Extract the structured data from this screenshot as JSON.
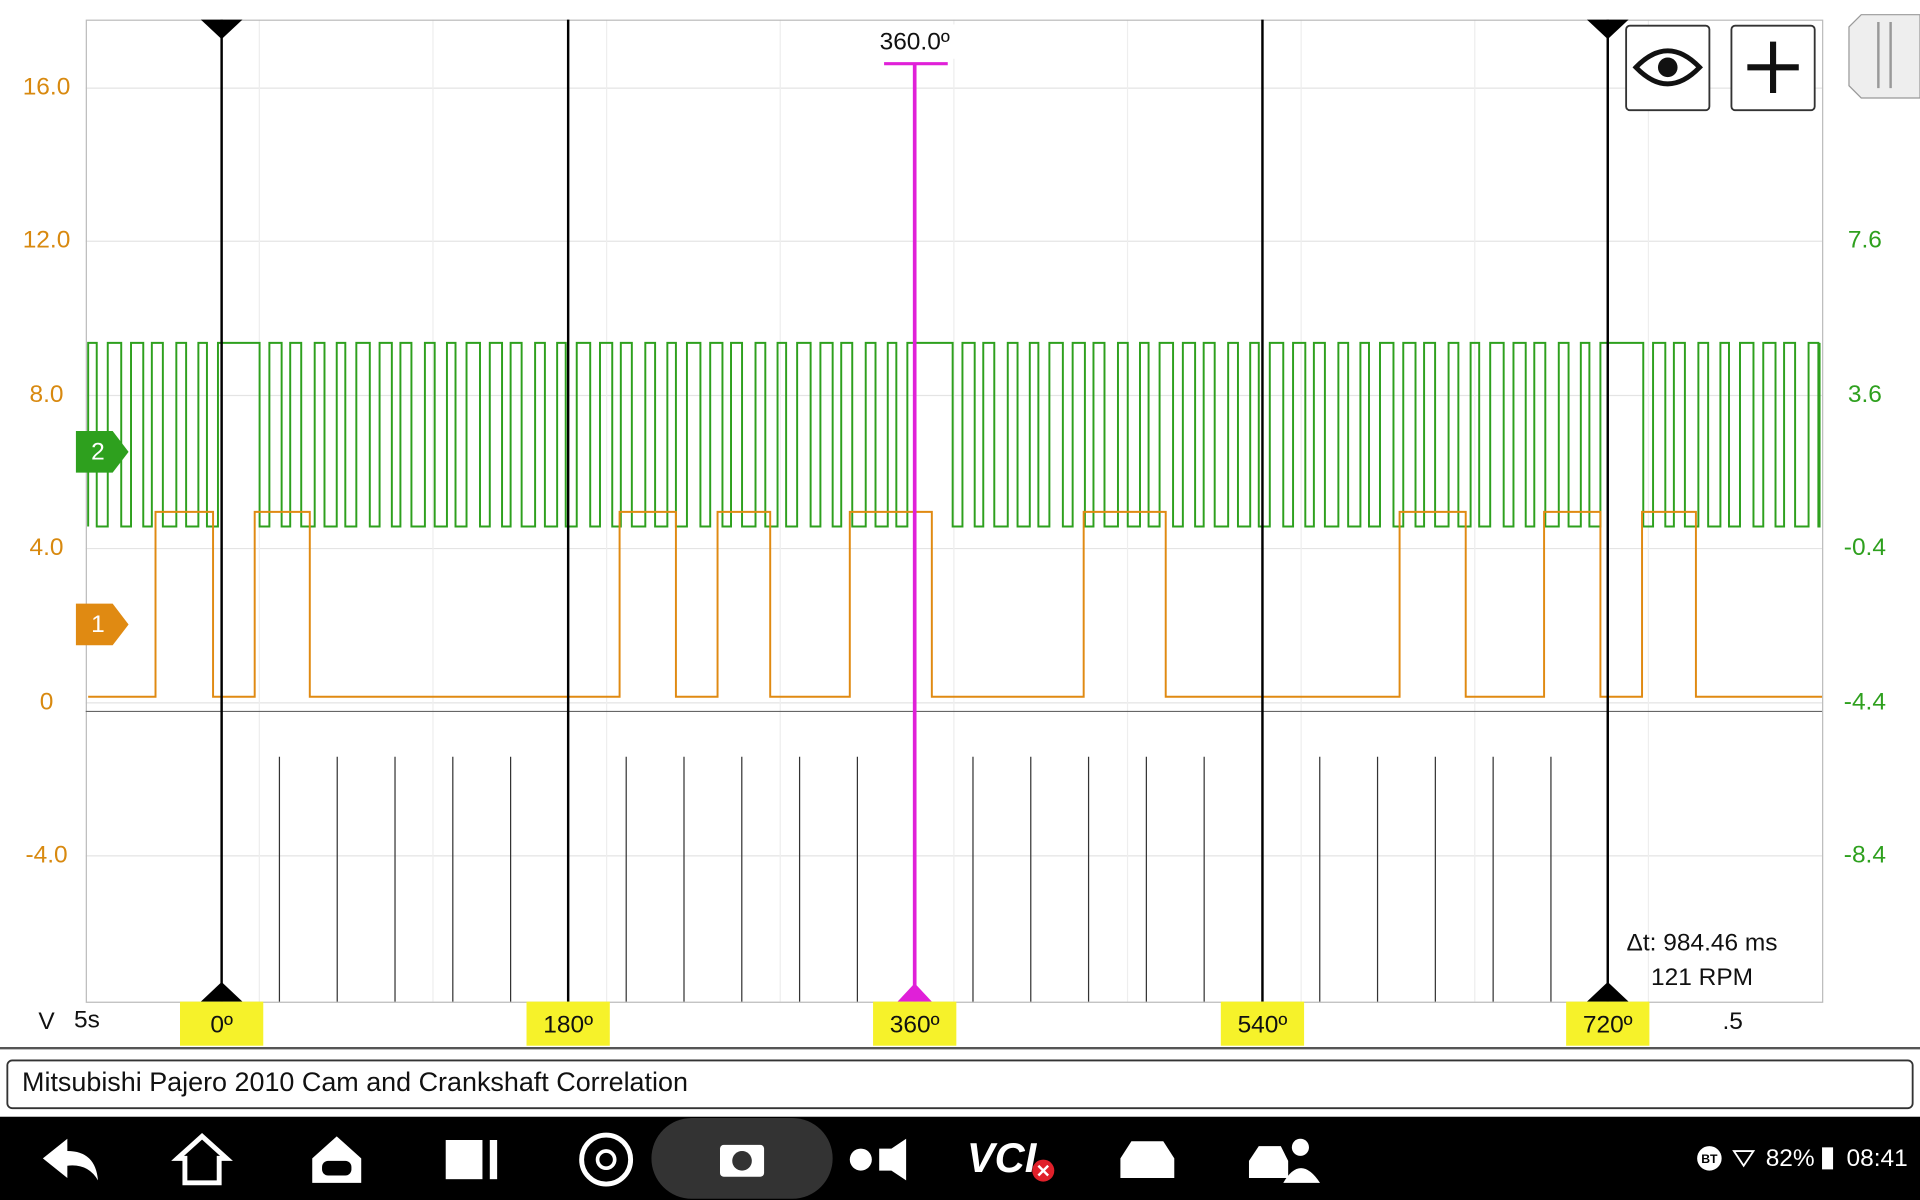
{
  "y_axis_left": {
    "ticks": [
      "16.0",
      "12.0",
      "8.0",
      "4.0",
      "0",
      "-4.0"
    ],
    "unit": "V"
  },
  "y_axis_right": {
    "ticks": [
      "7.6",
      "3.6",
      "-0.4",
      "-4.4",
      "-8.4"
    ]
  },
  "time_base": "5s",
  "x_end_label": ".5",
  "cursor": {
    "label": "360.0º"
  },
  "angle_markers": [
    "0º",
    "180º",
    "360º",
    "540º",
    "720º"
  ],
  "channels": [
    "2",
    "1"
  ],
  "measurement": {
    "delta_t": "Δt: 984.46 ms",
    "rpm": "121 RPM"
  },
  "title": "Mitsubishi Pajero 2010 Cam and Crankshaft Correlation",
  "status": {
    "bt": "BT",
    "battery": "82%",
    "time": "08:41"
  },
  "nav": {
    "vci": "VCI"
  }
}
